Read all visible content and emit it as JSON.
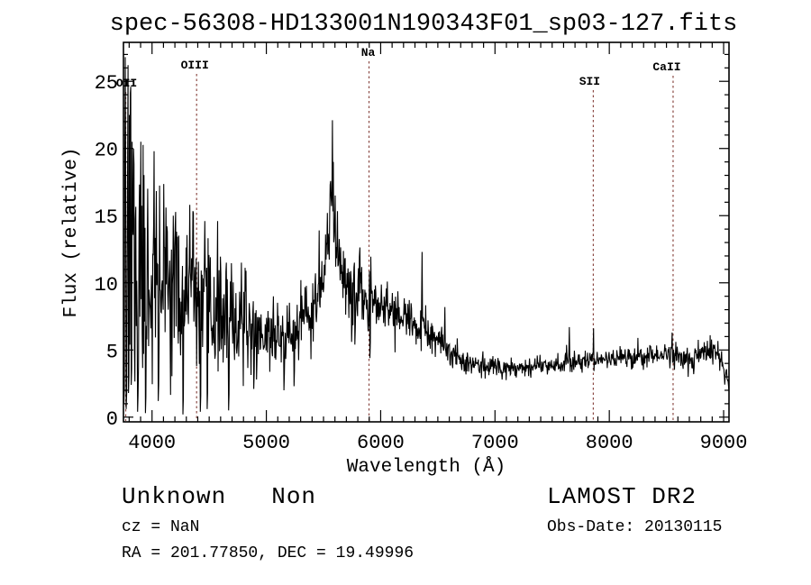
{
  "chart_data": {
    "type": "line",
    "title": "spec-56308-HD133001N190343F01_sp03-127.fits",
    "xlabel": "Wavelength (Å)",
    "ylabel": "Flux (relative)",
    "xlim": [
      3750,
      9047
    ],
    "ylim": [
      -0.35,
      27.9
    ],
    "x_ticks": [
      4000,
      5000,
      6000,
      7000,
      8000,
      9000
    ],
    "x_minor_step": 100,
    "y_ticks": [
      0,
      5,
      10,
      15,
      20,
      25
    ],
    "y_minor_step": 1,
    "grid": false,
    "line_color": "#000000",
    "marker_line_color": "#8b4a44",
    "markers": [
      {
        "label": "OII",
        "wavelength": 3770,
        "label_y": 96,
        "label_dx": 1
      },
      {
        "label": "OIII",
        "wavelength": 4390,
        "label_y": 76,
        "label_dx": -2
      },
      {
        "label": "Na",
        "wavelength": 5898,
        "label_y": 62,
        "label_dx": -1
      },
      {
        "label": "SII",
        "wavelength": 7860,
        "label_y": 94,
        "label_dx": -4
      },
      {
        "label": "CaII",
        "wavelength": 8558,
        "label_y": 78,
        "label_dx": -7
      }
    ],
    "spectrum": {
      "step": 4,
      "seed": 11,
      "continuum_anchors": [
        [
          3740,
          12.0,
          7.5
        ],
        [
          3800,
          13.5,
          7.5
        ],
        [
          3860,
          11.0,
          5.0
        ],
        [
          3960,
          10.0,
          4.0
        ],
        [
          4060,
          10.0,
          3.2
        ],
        [
          4160,
          10.2,
          3.0
        ],
        [
          4260,
          8.8,
          2.6
        ],
        [
          4380,
          8.8,
          2.4
        ],
        [
          4500,
          7.8,
          2.2
        ],
        [
          4650,
          7.4,
          2.0
        ],
        [
          4800,
          6.6,
          1.6
        ],
        [
          4950,
          6.2,
          1.3
        ],
        [
          5100,
          6.0,
          1.1
        ],
        [
          5250,
          6.3,
          1.1
        ],
        [
          5400,
          7.6,
          1.3
        ],
        [
          5500,
          10.0,
          1.6
        ],
        [
          5550,
          13.5,
          1.8
        ],
        [
          5577,
          16.0,
          1.8
        ],
        [
          5610,
          12.8,
          1.6
        ],
        [
          5700,
          10.2,
          1.3
        ],
        [
          5800,
          9.2,
          1.2
        ],
        [
          5900,
          8.6,
          1.1
        ],
        [
          6000,
          8.4,
          0.95
        ],
        [
          6100,
          7.9,
          0.85
        ],
        [
          6200,
          7.4,
          0.85
        ],
        [
          6300,
          6.8,
          0.75
        ],
        [
          6400,
          6.2,
          0.7
        ],
        [
          6500,
          5.6,
          0.6
        ],
        [
          6600,
          4.9,
          0.55
        ],
        [
          6700,
          4.4,
          0.5
        ],
        [
          6800,
          4.05,
          0.42
        ],
        [
          6950,
          3.8,
          0.38
        ],
        [
          7100,
          3.7,
          0.36
        ],
        [
          7300,
          3.8,
          0.36
        ],
        [
          7500,
          3.95,
          0.4
        ],
        [
          7700,
          4.15,
          0.42
        ],
        [
          7900,
          4.3,
          0.42
        ],
        [
          8100,
          4.45,
          0.42
        ],
        [
          8300,
          4.5,
          0.42
        ],
        [
          8500,
          4.7,
          0.45
        ],
        [
          8620,
          4.6,
          0.5
        ],
        [
          8720,
          4.35,
          0.5
        ],
        [
          8820,
          4.8,
          0.45
        ],
        [
          8930,
          4.7,
          0.5
        ],
        [
          9000,
          3.8,
          0.45
        ],
        [
          9046,
          2.4,
          0.3
        ]
      ],
      "emission_spikes": [
        [
          3746,
          27.4
        ],
        [
          3758,
          25.2
        ],
        [
          3766,
          26.8
        ],
        [
          3778,
          24.0
        ],
        [
          3788,
          26.2
        ],
        [
          3800,
          22.5
        ],
        [
          3812,
          24.6
        ],
        [
          3824,
          20.5
        ],
        [
          3900,
          20.5
        ],
        [
          3962,
          17.0
        ],
        [
          4018,
          19.8
        ],
        [
          4120,
          15.6
        ],
        [
          4185,
          15.0
        ],
        [
          4330,
          15.8
        ],
        [
          4363,
          15.2
        ],
        [
          4462,
          14.6
        ],
        [
          4572,
          14.6
        ],
        [
          4780,
          11.5
        ],
        [
          5060,
          9.0
        ],
        [
          5300,
          10.2
        ],
        [
          5462,
          13.9
        ],
        [
          5532,
          15.2
        ],
        [
          5577,
          22.1
        ],
        [
          5585,
          19.0
        ],
        [
          5600,
          16.5
        ],
        [
          6360,
          12.3
        ],
        [
          6560,
          8.2
        ],
        [
          7650,
          6.7
        ],
        [
          7862,
          6.6
        ],
        [
          8250,
          5.9
        ],
        [
          8550,
          6.3
        ],
        [
          8880,
          6.1
        ]
      ],
      "absorption_dips": [
        [
          3752,
          1.0
        ],
        [
          3772,
          0.6
        ],
        [
          3794,
          1.8
        ],
        [
          3818,
          2.4
        ],
        [
          3872,
          0.4
        ],
        [
          3940,
          0.3
        ],
        [
          4055,
          1.2
        ],
        [
          4270,
          0.2
        ],
        [
          4420,
          0.4
        ],
        [
          4480,
          0.6
        ],
        [
          4668,
          0.5
        ],
        [
          4890,
          2.1
        ],
        [
          5155,
          2.0
        ],
        [
          5240,
          2.3
        ],
        [
          5745,
          5.6
        ],
        [
          5772,
          5.4
        ],
        [
          5905,
          4.4
        ],
        [
          6880,
          2.9
        ],
        [
          7060,
          2.8
        ],
        [
          8690,
          3.0
        ],
        [
          8736,
          3.2
        ]
      ]
    }
  },
  "footer": {
    "class_label": "Unknown",
    "subclass_label": "Non",
    "cz_line": "cz = NaN",
    "radec_line": "RA = 201.77850, DEC =  19.49996",
    "survey": "LAMOST DR2",
    "obsdate_line": "Obs-Date: 20130115"
  }
}
